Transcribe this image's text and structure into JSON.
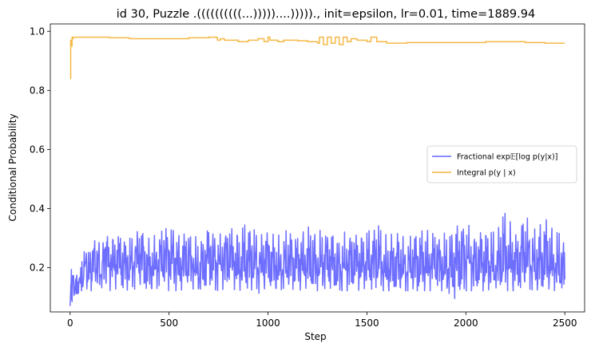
{
  "chart_data": {
    "type": "line",
    "title": "id 30, Puzzle .((((((((((...)))))....)))))., init=epsilon, lr=0.01, time=1889.94",
    "xlabel": "Step",
    "ylabel": "Conditional Probability",
    "xlim": [
      -100,
      2600
    ],
    "ylim": [
      0.05,
      1.025
    ],
    "xticks": [
      0,
      500,
      1000,
      1500,
      2000,
      2500
    ],
    "yticks": [
      0.2,
      0.4,
      0.6,
      0.8,
      1.0
    ],
    "xtick_labels": [
      "0",
      "500",
      "1000",
      "1500",
      "2000",
      "2500"
    ],
    "ytick_labels": [
      "0.2",
      "0.4",
      "0.6",
      "0.8",
      "1.0"
    ],
    "grid": false,
    "legend_position": "center-right",
    "series": [
      {
        "name": "Fractional exp𝔼[log p(y|x)]",
        "color": "#6666ff",
        "x": [
          0,
          3,
          5,
          8,
          10,
          15,
          20,
          30,
          40,
          50,
          60,
          80,
          100,
          120,
          140,
          160,
          180,
          200,
          250,
          300,
          350,
          400,
          450,
          500,
          550,
          600,
          650,
          700,
          750,
          800,
          850,
          900,
          950,
          1000,
          1050,
          1100,
          1150,
          1200,
          1250,
          1300,
          1350,
          1400,
          1450,
          1500,
          1550,
          1600,
          1650,
          1700,
          1750,
          1800,
          1850,
          1900,
          1950,
          2000,
          2050,
          2100,
          2150,
          2200,
          2250,
          2300,
          2350,
          2400,
          2450,
          2500
        ],
        "values": [
          0.07,
          0.12,
          0.23,
          0.1,
          0.09,
          0.15,
          0.11,
          0.18,
          0.13,
          0.2,
          0.16,
          0.22,
          0.18,
          0.24,
          0.2,
          0.17,
          0.27,
          0.21,
          0.23,
          0.19,
          0.26,
          0.18,
          0.22,
          0.25,
          0.2,
          0.23,
          0.17,
          0.24,
          0.21,
          0.25,
          0.19,
          0.22,
          0.2,
          0.24,
          0.18,
          0.21,
          0.23,
          0.2,
          0.19,
          0.24,
          0.18,
          0.21,
          0.22,
          0.2,
          0.23,
          0.18,
          0.21,
          0.19,
          0.22,
          0.2,
          0.23,
          0.18,
          0.21,
          0.24,
          0.2,
          0.22,
          0.18,
          0.23,
          0.21,
          0.25,
          0.19,
          0.22,
          0.2,
          0.16
        ],
        "min_values": [
          0.07,
          0.08,
          0.09,
          0.08,
          0.08,
          0.1,
          0.1,
          0.11,
          0.11,
          0.12,
          0.12,
          0.12,
          0.12,
          0.12,
          0.13,
          0.13,
          0.13,
          0.12,
          0.13,
          0.12,
          0.13,
          0.12,
          0.13,
          0.12,
          0.12,
          0.13,
          0.12,
          0.13,
          0.12,
          0.13,
          0.12,
          0.13,
          0.11,
          0.13,
          0.12,
          0.13,
          0.12,
          0.13,
          0.12,
          0.13,
          0.12,
          0.12,
          0.12,
          0.13,
          0.12,
          0.12,
          0.12,
          0.12,
          0.12,
          0.12,
          0.12,
          0.12,
          0.09,
          0.12,
          0.12,
          0.12,
          0.13,
          0.12,
          0.12,
          0.13,
          0.12,
          0.13,
          0.12,
          0.13
        ],
        "max_values": [
          0.07,
          0.15,
          0.23,
          0.16,
          0.15,
          0.2,
          0.19,
          0.22,
          0.23,
          0.24,
          0.25,
          0.26,
          0.27,
          0.29,
          0.3,
          0.28,
          0.32,
          0.3,
          0.31,
          0.3,
          0.33,
          0.3,
          0.32,
          0.34,
          0.31,
          0.32,
          0.3,
          0.33,
          0.31,
          0.34,
          0.32,
          0.36,
          0.31,
          0.32,
          0.31,
          0.33,
          0.3,
          0.34,
          0.33,
          0.32,
          0.3,
          0.33,
          0.31,
          0.32,
          0.35,
          0.31,
          0.32,
          0.3,
          0.32,
          0.33,
          0.31,
          0.32,
          0.34,
          0.36,
          0.31,
          0.33,
          0.32,
          0.4,
          0.31,
          0.38,
          0.33,
          0.37,
          0.32,
          0.32
        ]
      },
      {
        "name": "Integral p(y | x)",
        "color": "#f5b43c",
        "x": [
          0,
          2,
          3,
          5,
          8,
          10,
          12,
          15,
          20,
          50,
          100,
          200,
          300,
          400,
          500,
          600,
          700,
          740,
          745,
          760,
          780,
          800,
          850,
          900,
          950,
          980,
          1000,
          1010,
          1050,
          1080,
          1100,
          1150,
          1200,
          1250,
          1260,
          1280,
          1300,
          1320,
          1340,
          1360,
          1380,
          1400,
          1420,
          1450,
          1500,
          1520,
          1550,
          1600,
          1650,
          1700,
          1750,
          1800,
          1900,
          2000,
          2100,
          2200,
          2300,
          2400,
          2500
        ],
        "values": [
          0.84,
          0.84,
          0.97,
          0.96,
          0.95,
          0.98,
          0.975,
          0.98,
          0.98,
          0.98,
          0.98,
          0.978,
          0.975,
          0.975,
          0.975,
          0.978,
          0.98,
          0.978,
          0.97,
          0.975,
          0.97,
          0.97,
          0.965,
          0.97,
          0.975,
          0.965,
          0.98,
          0.97,
          0.965,
          0.97,
          0.97,
          0.968,
          0.965,
          0.96,
          0.98,
          0.955,
          0.98,
          0.96,
          0.98,
          0.955,
          0.98,
          0.965,
          0.975,
          0.97,
          0.965,
          0.98,
          0.965,
          0.96,
          0.96,
          0.962,
          0.962,
          0.962,
          0.962,
          0.962,
          0.965,
          0.965,
          0.962,
          0.96,
          0.96
        ]
      }
    ]
  }
}
